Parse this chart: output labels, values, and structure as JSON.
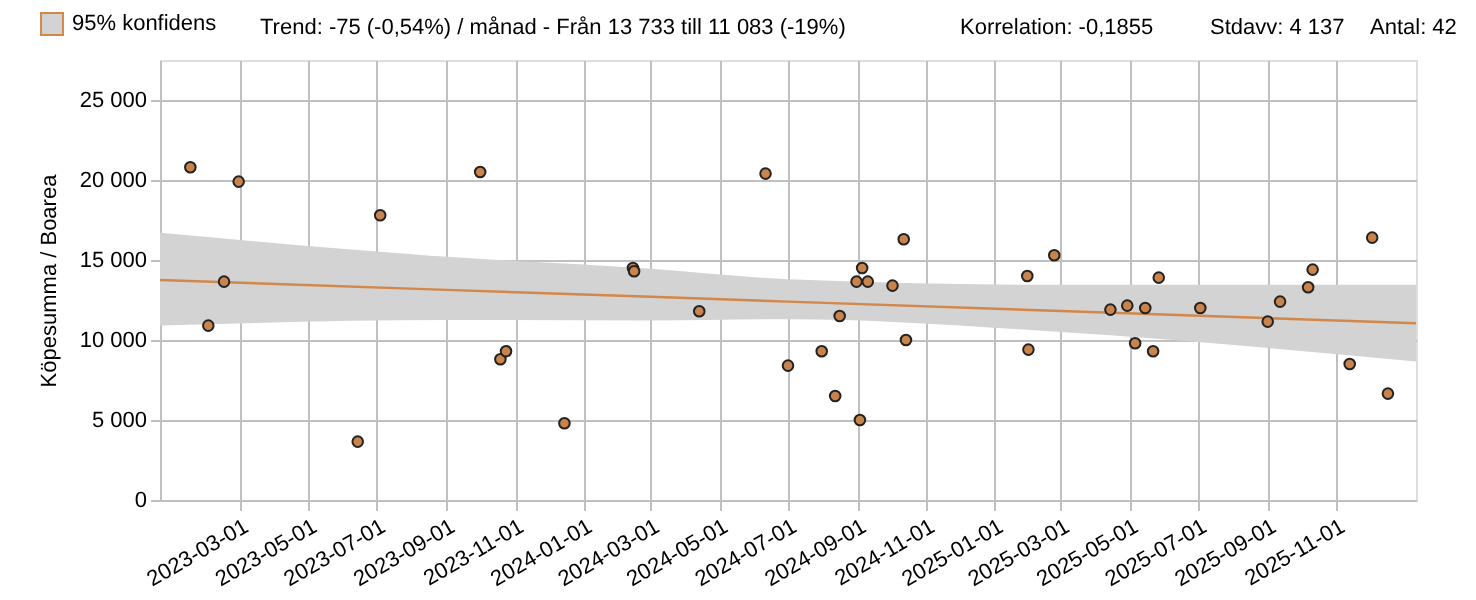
{
  "chart_data": {
    "type": "scatter",
    "ylabel": "Köpesumma / Boarea",
    "annotations": [
      "Trend: -75 (-0,54%) / månad  -  Från 13 733 till 11 083 (-19%)",
      "Korrelation: -0,1855",
      "Stdavv: 4 137",
      "Antal: 42"
    ],
    "xlim": [
      "2022-12-20",
      "2026-01-11"
    ],
    "xticks": [
      "2023-03-01",
      "2023-05-01",
      "2023-07-01",
      "2023-09-01",
      "2023-11-01",
      "2024-01-01",
      "2024-03-01",
      "2024-05-01",
      "2024-07-01",
      "2024-09-01",
      "2024-11-01",
      "2025-01-01",
      "2025-03-01",
      "2025-05-01",
      "2025-07-01",
      "2025-09-01",
      "2025-11-01"
    ],
    "ylim": [
      0,
      27500
    ],
    "yticks": [
      {
        "value": 0,
        "label": "0"
      },
      {
        "value": 5000,
        "label": "5 000"
      },
      {
        "value": 10000,
        "label": "10 000"
      },
      {
        "value": 15000,
        "label": "15 000"
      },
      {
        "value": 20000,
        "label": "20 000"
      },
      {
        "value": 25000,
        "label": "25 000"
      }
    ],
    "grid": true,
    "legend": "top left",
    "series": [
      {
        "type": "line",
        "name": "95% konfidens",
        "color": "#d2874b",
        "x": [
          "2022-12-20",
          "2023-09-01",
          "2024-03-01",
          "2024-07-01",
          "2025-03-01",
          "2026-01-11"
        ],
        "values": [
          13750,
          13130,
          12700,
          12400,
          11810,
          11050
        ],
        "lower": [
          10900,
          11250,
          11225,
          11300,
          10500,
          8650
        ],
        "upper": [
          16700,
          15200,
          14450,
          13800,
          13450,
          13450
        ]
      },
      {
        "color": "#c8844c",
        "marker": "circle",
        "x": [
          "2023-01-16",
          "2023-02-01",
          "2023-02-15",
          "2023-02-28",
          "2023-06-14",
          "2023-07-04",
          "2023-10-01",
          "2023-10-19",
          "2023-10-24",
          "2023-12-15",
          "2024-02-14",
          "2024-02-15",
          "2024-04-13",
          "2024-06-11",
          "2024-07-01",
          "2024-07-31",
          "2024-08-12",
          "2024-08-16",
          "2024-08-31",
          "2024-09-05",
          "2024-09-03",
          "2024-09-10",
          "2024-10-02",
          "2024-10-12",
          "2024-10-14",
          "2025-01-30",
          "2025-01-31",
          "2025-02-23",
          "2025-04-14",
          "2025-04-29",
          "2025-05-06",
          "2025-05-15",
          "2025-05-22",
          "2025-05-27",
          "2025-07-03",
          "2025-09-01",
          "2025-09-12",
          "2025-10-07",
          "2025-10-11",
          "2025-11-13",
          "2025-12-03",
          "2025-12-17"
        ],
        "values": [
          20800,
          10900,
          13650,
          19900,
          3650,
          17800,
          20500,
          8800,
          9300,
          4800,
          14500,
          14300,
          11800,
          20400,
          8400,
          9300,
          6500,
          11500,
          13650,
          14500,
          5000,
          13650,
          13400,
          16300,
          10000,
          14000,
          9400,
          15300,
          11900,
          12150,
          9800,
          12000,
          9300,
          13900,
          12000,
          11150,
          12400,
          13300,
          14400,
          8500,
          16400,
          6650
        ]
      }
    ]
  }
}
